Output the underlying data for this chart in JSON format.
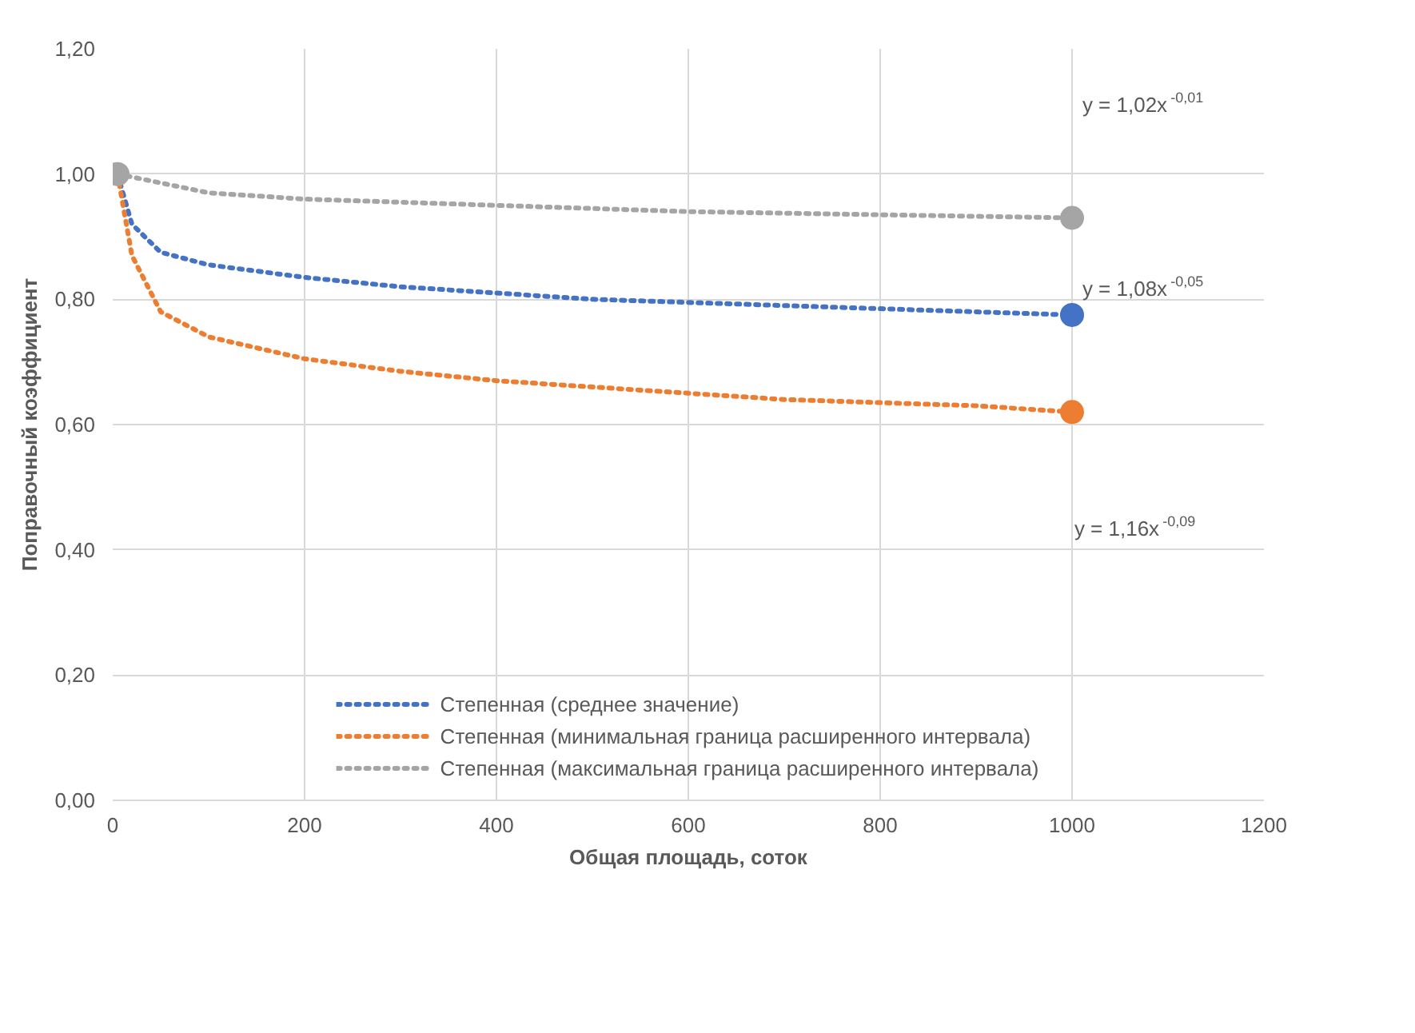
{
  "chart_data": {
    "type": "line",
    "xlabel": "Общая площадь, соток",
    "ylabel": "Поправочный коэффициент",
    "xlim": [
      0,
      1200
    ],
    "xticks": [
      0,
      200,
      400,
      600,
      800,
      1000,
      1200
    ],
    "ylim": [
      0,
      1.2
    ],
    "yticks": [
      {
        "value": 0,
        "label": "0,00"
      },
      {
        "value": 0.2,
        "label": "0,20"
      },
      {
        "value": 0.4,
        "label": "0,40"
      },
      {
        "value": 0.6,
        "label": "0,60"
      },
      {
        "value": 0.8,
        "label": "0,80"
      },
      {
        "value": 1.0,
        "label": "1,00"
      },
      {
        "value": 1.2,
        "label": "1,20"
      }
    ],
    "grid": true,
    "legend": "bottom",
    "line_style": "dotted",
    "series": [
      {
        "name": "Степенная (среднее значение)",
        "color": "#4472c4",
        "x": [
          5,
          20,
          50,
          100,
          200,
          300,
          400,
          500,
          600,
          700,
          800,
          900,
          1000
        ],
        "values": [
          1.0,
          0.92,
          0.875,
          0.855,
          0.835,
          0.82,
          0.81,
          0.8,
          0.795,
          0.79,
          0.785,
          0.78,
          0.775
        ]
      },
      {
        "name": "Степенная (минимальная граница расширенного интервала)",
        "color": "#ed7d31",
        "x": [
          5,
          20,
          50,
          100,
          200,
          300,
          400,
          500,
          600,
          700,
          800,
          900,
          1000
        ],
        "values": [
          1.0,
          0.87,
          0.78,
          0.74,
          0.705,
          0.685,
          0.67,
          0.66,
          0.65,
          0.64,
          0.635,
          0.63,
          0.62
        ]
      },
      {
        "name": "Степенная (максимальная граница расширенного интервала)",
        "color": "#a5a5a5",
        "x": [
          5,
          100,
          200,
          400,
          600,
          800,
          1000
        ],
        "values": [
          1.0,
          0.97,
          0.96,
          0.95,
          0.94,
          0.935,
          0.93
        ]
      },
      {
        "type": "scatter",
        "marker": "circle",
        "color": "#a5a5a5",
        "x": [
          5,
          1000
        ],
        "values": [
          1.0,
          0.93
        ]
      },
      {
        "type": "scatter",
        "marker": "circle",
        "color": "#4472c4",
        "x": [
          1000
        ],
        "values": [
          0.775
        ]
      },
      {
        "type": "scatter",
        "marker": "circle",
        "color": "#ed7d31",
        "x": [
          1000
        ],
        "values": [
          0.62
        ]
      }
    ],
    "annotations": [
      "y = 1,02x$^{-0,01}$",
      "y = 1,08x$^{-0,05}$",
      "y = 1,16x$^{-0,09}$"
    ]
  }
}
